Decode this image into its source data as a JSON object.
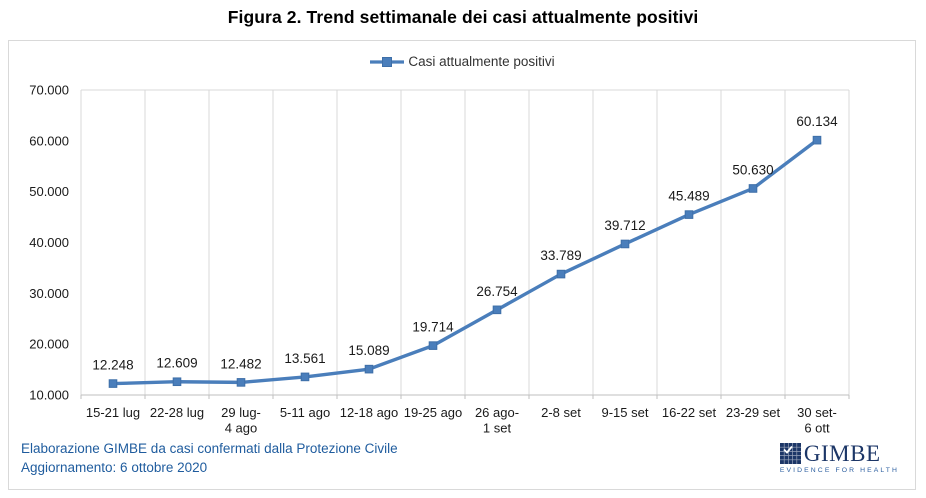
{
  "page": {
    "title": "Figura 2. Trend settimanale dei casi attualmente positivi"
  },
  "legend": {
    "label": "Casi attualmente positivi"
  },
  "footer": {
    "line1": "Elaborazione GIMBE da casi confermati dalla Protezione Civile",
    "line2": "Aggiornamento: 6 ottobre 2020"
  },
  "logo": {
    "name": "GIMBE",
    "tagline": "EVIDENCE FOR HEALTH"
  },
  "colors": {
    "series": "#4a7ebb",
    "marker_edge": "#3e6fa8",
    "grid": "#d9d9d9",
    "axis": "#bfbfbf",
    "text": "#1a1a1a",
    "footer_text": "#1f5c9e",
    "logo_navy": "#1c3667"
  },
  "chart_data": {
    "type": "line",
    "title": "Figura 2. Trend settimanale dei casi attualmente positivi",
    "series": [
      {
        "name": "Casi attualmente positivi",
        "values": [
          12248,
          12609,
          12482,
          13561,
          15089,
          19714,
          26754,
          33789,
          39712,
          45489,
          50630,
          60134
        ],
        "value_labels": [
          "12.248",
          "12.609",
          "12.482",
          "13.561",
          "15.089",
          "19.714",
          "26.754",
          "33.789",
          "39.712",
          "45.489",
          "50.630",
          "60.134"
        ]
      }
    ],
    "categories": [
      [
        "15-21 lug"
      ],
      [
        "22-28 lug"
      ],
      [
        "29 lug-",
        "4 ago"
      ],
      [
        "5-11 ago"
      ],
      [
        "12-18 ago"
      ],
      [
        "19-25 ago"
      ],
      [
        "26 ago-",
        "1 set"
      ],
      [
        "2-8 set"
      ],
      [
        "9-15 set"
      ],
      [
        "16-22 set"
      ],
      [
        "23-29 set"
      ],
      [
        "30 set-",
        "6 ott"
      ]
    ],
    "ylim": [
      10000,
      70000
    ],
    "y_ticks": [
      10000,
      20000,
      30000,
      40000,
      50000,
      60000,
      70000
    ],
    "y_tick_labels": [
      "10.000",
      "20.000",
      "30.000",
      "40.000",
      "50.000",
      "60.000",
      "70.000"
    ],
    "grid": "vertical-only",
    "legend_position": "top-center",
    "data_labels": "above-points"
  }
}
